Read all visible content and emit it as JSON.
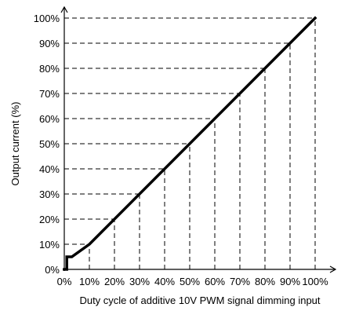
{
  "chart_data": {
    "type": "line",
    "xlabel": "Duty cycle of additive 10V PWM signal dimming input",
    "ylabel": "Output current (%)",
    "x_ticks": [
      "0%",
      "10%",
      "20%",
      "30%",
      "40%",
      "50%",
      "60%",
      "70%",
      "80%",
      "90%",
      "100%"
    ],
    "y_ticks": [
      "0%",
      "10%",
      "20%",
      "30%",
      "40%",
      "50%",
      "60%",
      "70%",
      "80%",
      "90%",
      "100%"
    ],
    "xlim": [
      0,
      100
    ],
    "ylim": [
      0,
      100
    ],
    "grid": "dashed guide lines",
    "series": [
      {
        "x": [
          0,
          1,
          1,
          3,
          10,
          20,
          30,
          40,
          50,
          60,
          70,
          80,
          90,
          100
        ],
        "y": [
          0,
          0,
          5,
          5,
          10,
          20,
          30,
          40,
          50,
          60,
          70,
          80,
          90,
          100
        ]
      }
    ],
    "colors": {
      "line": "#000000",
      "guides": "#000000"
    }
  }
}
